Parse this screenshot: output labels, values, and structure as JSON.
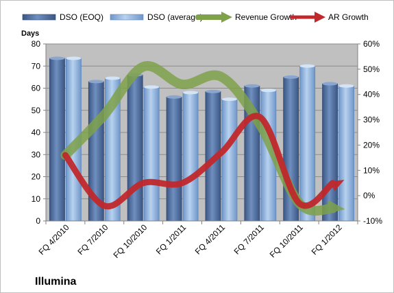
{
  "chart_data": {
    "type": "bar",
    "company": "Illumina",
    "ylabel": "Days",
    "ylim": [
      0,
      80
    ],
    "y_ticks": [
      0,
      10,
      20,
      30,
      40,
      50,
      60,
      70,
      80
    ],
    "y2lim": [
      -10,
      60
    ],
    "y2_ticks": [
      "-10%",
      "0%",
      "10%",
      "20%",
      "30%",
      "40%",
      "50%",
      "60%"
    ],
    "categories": [
      "FQ 4/2010",
      "FQ 7/2010",
      "FQ 10/2010",
      "FQ 1/2011",
      "FQ 4/2011",
      "FQ 7/2011",
      "FQ 10/2011",
      "FQ 1/2012"
    ],
    "series": [
      {
        "name": "DSO (EOQ)",
        "type": "bar",
        "axis": "left",
        "color": "#4f6fa0",
        "values": [
          73.5,
          63,
          66,
          56,
          58.5,
          61,
          65,
          62
        ]
      },
      {
        "name": "DSO (average)",
        "type": "bar",
        "axis": "left",
        "color": "#8fb3e0",
        "values": [
          73.5,
          64.5,
          60.5,
          58,
          55,
          59,
          70,
          61
        ]
      },
      {
        "name": "Revenue Growth",
        "type": "line",
        "axis": "right",
        "unit": "%",
        "color": "#7ea14a",
        "values": [
          16,
          32,
          51,
          44,
          47,
          28,
          -3,
          -5
        ]
      },
      {
        "name": "AR Growth",
        "type": "line",
        "axis": "right",
        "unit": "%",
        "color": "#c0282c",
        "values": [
          16,
          -4,
          5,
          5,
          17,
          31,
          -3,
          5
        ]
      }
    ],
    "grid": true,
    "legend": "top"
  }
}
